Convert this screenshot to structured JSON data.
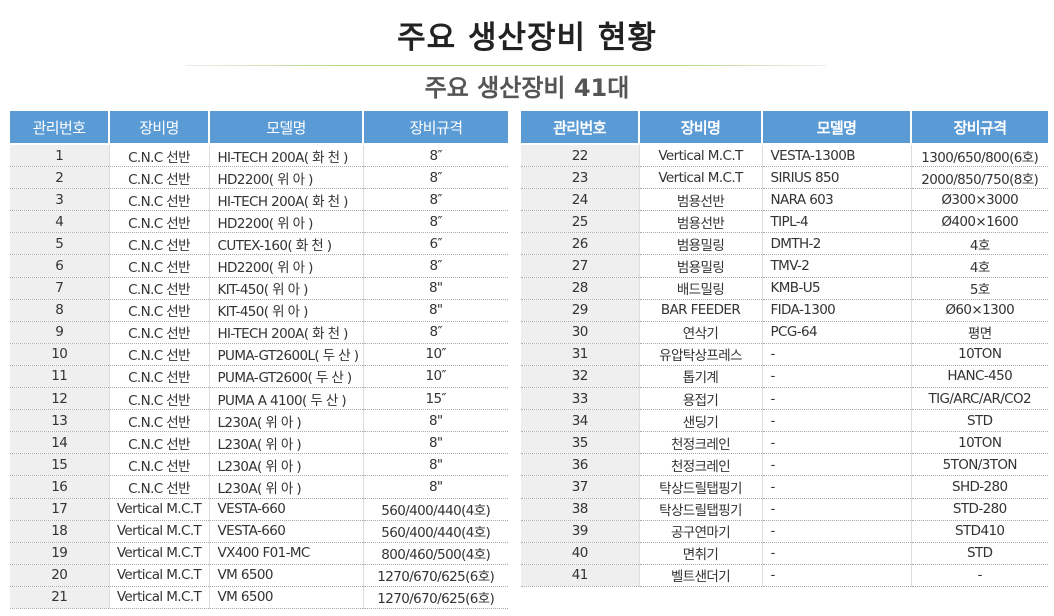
{
  "title": "주요 생산장비 현황",
  "subtitle": "주요 생산장비 41대",
  "colors": {
    "header_bg": "#5b9bd5",
    "rule": "#b5d67a"
  },
  "headers": [
    "관리번호",
    "장비명",
    "모델명",
    "장비규격"
  ],
  "left_rows": [
    [
      "1",
      "C.N.C  선반",
      "HI-TECH 200A( 화 천 )",
      "8″"
    ],
    [
      "2",
      "C.N.C  선반",
      "HD2200( 위 아 )",
      "8″"
    ],
    [
      "3",
      "C.N.C  선반",
      "HI-TECH 200A( 화 천 )",
      "8″"
    ],
    [
      "4",
      "C.N.C  선반",
      "HD2200( 위 아 )",
      "8″"
    ],
    [
      "5",
      "C.N.C  선반",
      "CUTEX-160( 화 천 )",
      "6″"
    ],
    [
      "6",
      "C.N.C  선반",
      "HD2200( 위 아 )",
      "8″"
    ],
    [
      "7",
      "C.N.C  선반",
      "KIT-450( 위 아 )",
      "8\""
    ],
    [
      "8",
      "C.N.C  선반",
      "KIT-450( 위 아 )",
      "8\""
    ],
    [
      "9",
      "C.N.C  선반",
      "HI-TECH 200A( 화 천 )",
      "8″"
    ],
    [
      "10",
      "C.N.C  선반",
      "PUMA-GT2600L( 두 산 )",
      "10″"
    ],
    [
      "11",
      "C.N.C  선반",
      "PUMA-GT2600( 두 산 )",
      "10″"
    ],
    [
      "12",
      "C.N.C  선반",
      "PUMA A 4100( 두 산 )",
      "15″"
    ],
    [
      "13",
      "C.N.C  선반",
      "L230A( 위 아 )",
      "8\""
    ],
    [
      "14",
      "C.N.C  선반",
      "L230A( 위 아 )",
      "8\""
    ],
    [
      "15",
      "C.N.C  선반",
      "L230A( 위 아 )",
      "8\""
    ],
    [
      "16",
      "C.N.C  선반",
      "L230A( 위 아 )",
      "8\""
    ],
    [
      "17",
      "Vertical M.C.T",
      "VESTA-660",
      "560/400/440(4호)"
    ],
    [
      "18",
      "Vertical M.C.T",
      "VESTA-660",
      "560/400/440(4호)"
    ],
    [
      "19",
      "Vertical M.C.T",
      "VX400 F01-MC",
      "800/460/500(4호)"
    ],
    [
      "20",
      "Vertical M.C.T",
      "VM 6500",
      "1270/670/625(6호)"
    ],
    [
      "21",
      "Vertical M.C.T",
      "VM 6500",
      "1270/670/625(6호)"
    ]
  ],
  "right_rows": [
    [
      "22",
      "Vertical M.C.T",
      "VESTA-1300B",
      "1300/650/800(6호)"
    ],
    [
      "23",
      "Vertical M.C.T",
      "SIRIUS 850",
      "2000/850/750(8호)"
    ],
    [
      "24",
      "범용선반",
      "NARA 603",
      "Ø300×3000"
    ],
    [
      "25",
      "범용선반",
      "TIPL-4",
      "Ø400×1600"
    ],
    [
      "26",
      "범용밀링",
      "DMTH-2",
      "4호"
    ],
    [
      "27",
      "범용밀링",
      "TMV-2",
      "4호"
    ],
    [
      "28",
      "배드밀링",
      "KMB-U5",
      "5호"
    ],
    [
      "29",
      "BAR FEEDER",
      "FIDA-1300",
      "Ø60×1300"
    ],
    [
      "30",
      "연삭기",
      "PCG-64",
      "평면"
    ],
    [
      "31",
      "유압탁상프레스",
      "-",
      "10TON"
    ],
    [
      "32",
      "톱기계",
      "-",
      "HANC-450"
    ],
    [
      "33",
      "용접기",
      "-",
      "TIG/ARC/AR/CO2"
    ],
    [
      "34",
      "샌딩기",
      "-",
      "STD"
    ],
    [
      "35",
      "천정크레인",
      "-",
      "10TON"
    ],
    [
      "36",
      "천정크레인",
      "-",
      "5TON/3TON"
    ],
    [
      "37",
      "탁상드릴탭핑기",
      "-",
      "SHD-280"
    ],
    [
      "38",
      "탁상드릴탭핑기",
      "-",
      "STD-280"
    ],
    [
      "39",
      "공구연마기",
      "-",
      "STD410"
    ],
    [
      "40",
      "면취기",
      "-",
      "STD"
    ],
    [
      "41",
      "벨트샌더기",
      "-",
      "-"
    ]
  ]
}
